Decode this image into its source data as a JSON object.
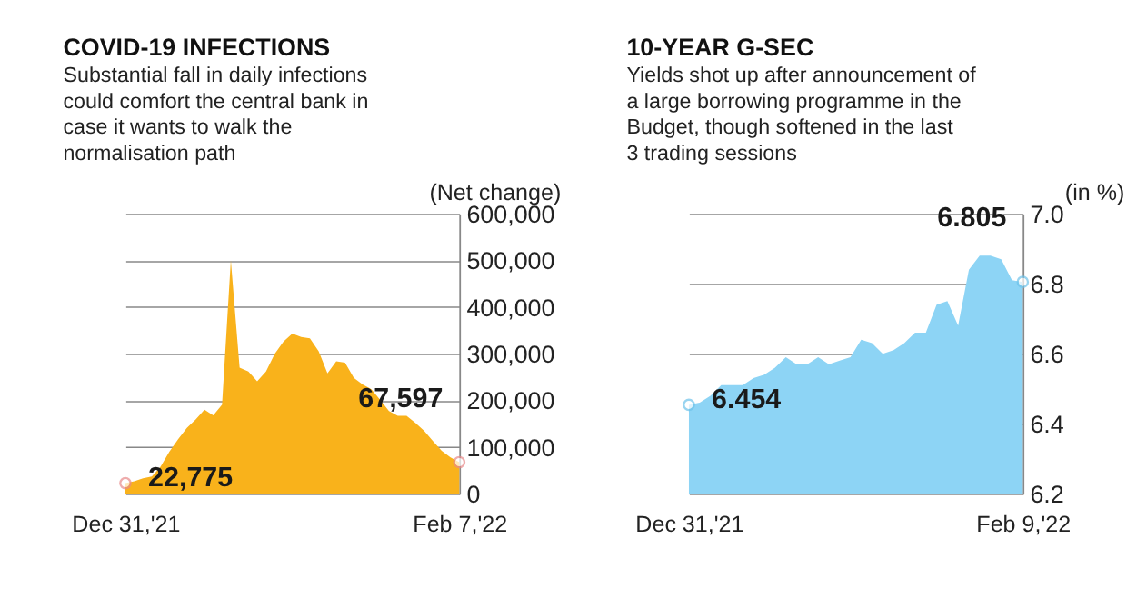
{
  "chart_data": [
    {
      "type": "area",
      "title": "COVID-19 INFECTIONS",
      "subtitle": "Substantial fall in daily infections could comfort the central bank in case it wants to walk the normalisation path",
      "ylabel": "(Net change)",
      "categories": [
        "Dec 31,'21",
        null,
        null,
        null,
        null,
        null,
        null,
        null,
        null,
        null,
        null,
        null,
        null,
        null,
        null,
        null,
        null,
        null,
        null,
        null,
        null,
        null,
        null,
        null,
        null,
        null,
        null,
        null,
        null,
        null,
        null,
        null,
        null,
        null,
        null,
        null,
        null,
        null,
        "Feb 7,'22"
      ],
      "series": [
        {
          "color": "#f9b21b",
          "values": [
            22775,
            27000,
            33000,
            37000,
            58000,
            90000,
            117000,
            141000,
            159000,
            180000,
            168000,
            191000,
            500000,
            270000,
            262000,
            241000,
            262000,
            300000,
            326000,
            343000,
            336000,
            333000,
            305000,
            258000,
            284000,
            281000,
            248000,
            234000,
            224000,
            201000,
            177000,
            167000,
            167000,
            152000,
            135000,
            113000,
            92000,
            78000,
            67597
          ]
        },
        {
          "type": "scatter",
          "color": "#e88a8a",
          "values": [
            22775,
            null,
            null,
            null,
            null,
            null,
            null,
            null,
            null,
            null,
            null,
            null,
            null,
            null,
            null,
            null,
            null,
            null,
            null,
            null,
            null,
            null,
            null,
            null,
            null,
            null,
            null,
            null,
            null,
            null,
            null,
            null,
            null,
            null,
            null,
            null,
            null,
            null,
            67597
          ]
        }
      ],
      "ylim": [
        0,
        600000
      ],
      "yticks": [
        {
          "value": 0,
          "label": "0"
        },
        {
          "value": 100000,
          "label": "100,000"
        },
        {
          "value": 200000,
          "label": "200,000"
        },
        {
          "value": 300000,
          "label": "300,000"
        },
        {
          "value": 400000,
          "label": "400,000"
        },
        {
          "value": 500000,
          "label": "500,000"
        },
        {
          "value": 600000,
          "label": "600,000"
        }
      ],
      "grid": "y",
      "annotations": [
        {
          "text": "22,775",
          "x": "Dec 31,'21",
          "y": 22775
        },
        {
          "text": "67,597",
          "x": "Feb 7,'22",
          "y": 67597
        }
      ]
    },
    {
      "type": "area",
      "title": "10-YEAR G-SEC",
      "subtitle": "Yields shot up after announcement of a large borrowing programme in the Budget, though softened in the last 3 trading sessions",
      "ylabel": "(in %)",
      "categories": [
        "Dec 31,'21",
        null,
        null,
        null,
        null,
        null,
        null,
        null,
        null,
        null,
        null,
        null,
        null,
        null,
        null,
        null,
        null,
        null,
        null,
        null,
        null,
        null,
        null,
        null,
        null,
        null,
        null,
        null,
        null,
        null,
        null,
        "Feb 9,'22"
      ],
      "series": [
        {
          "color": "#8dd4f5",
          "values": [
            6.454,
            6.46,
            6.48,
            6.51,
            6.51,
            6.51,
            6.53,
            6.54,
            6.56,
            6.59,
            6.57,
            6.57,
            6.59,
            6.57,
            6.58,
            6.59,
            6.64,
            6.63,
            6.6,
            6.61,
            6.63,
            6.66,
            6.66,
            6.74,
            6.75,
            6.68,
            6.84,
            6.88,
            6.88,
            6.87,
            6.81,
            6.805
          ]
        },
        {
          "type": "scatter",
          "color": "#6fc3ea",
          "values": [
            6.454,
            null,
            null,
            null,
            null,
            null,
            null,
            null,
            null,
            null,
            null,
            null,
            null,
            null,
            null,
            null,
            null,
            null,
            null,
            null,
            null,
            null,
            null,
            null,
            null,
            null,
            null,
            null,
            null,
            null,
            null,
            6.805
          ]
        }
      ],
      "ylim": [
        6.2,
        7.0
      ],
      "yticks": [
        {
          "value": 6.2,
          "label": "6.2"
        },
        {
          "value": 6.4,
          "label": "6.4"
        },
        {
          "value": 6.6,
          "label": "6.6"
        },
        {
          "value": 6.8,
          "label": "6.8"
        },
        {
          "value": 7.0,
          "label": "7.0"
        }
      ],
      "grid": "y",
      "annotations": [
        {
          "text": "6.454",
          "x": "Dec 31,'21",
          "y": 6.454
        },
        {
          "text": "6.805",
          "x": "Feb 9,'22",
          "y": 6.805
        }
      ]
    }
  ]
}
